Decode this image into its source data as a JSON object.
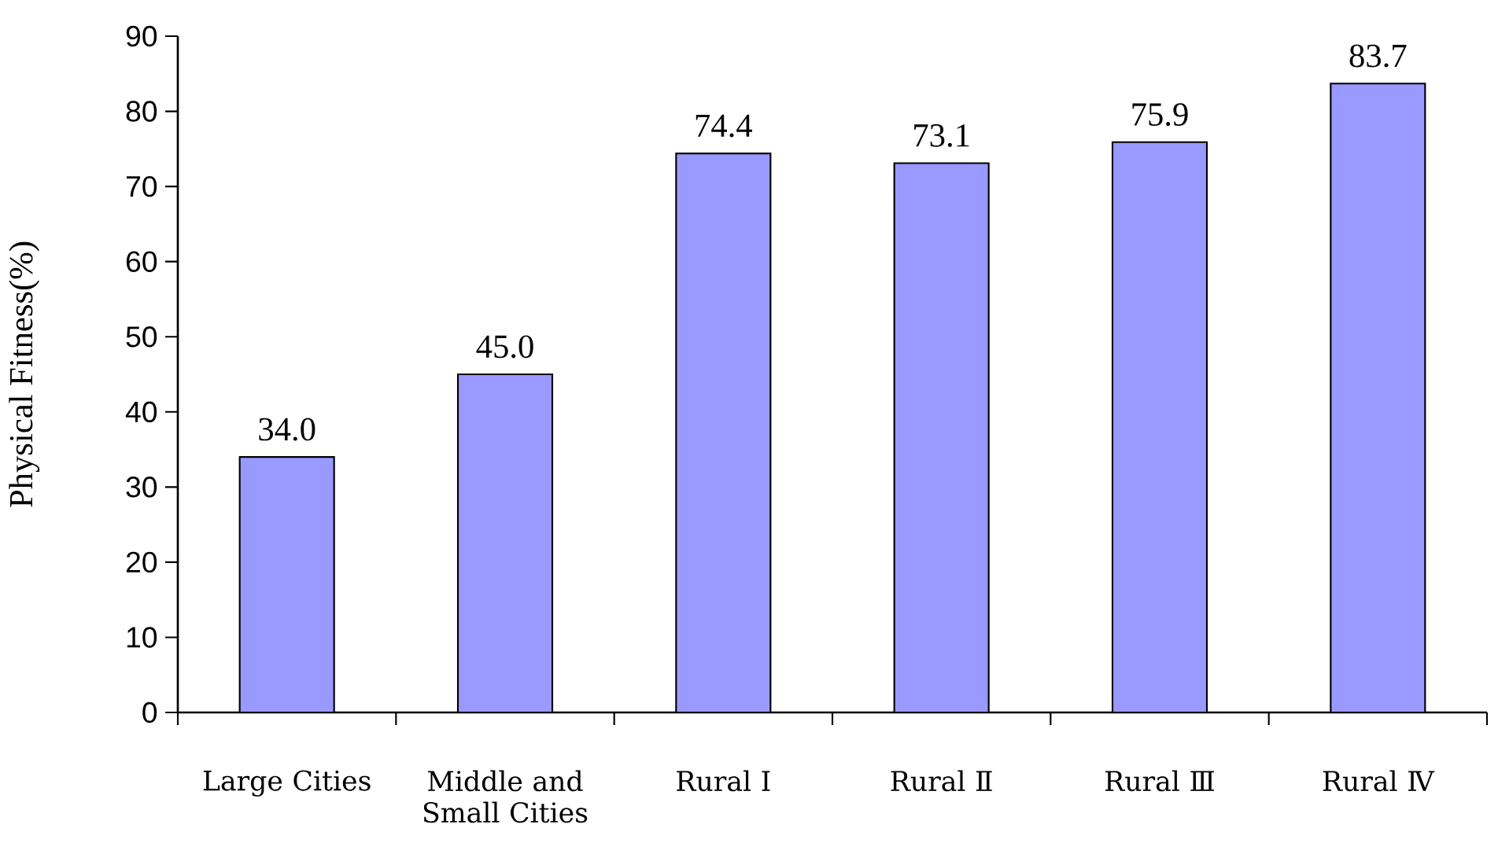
{
  "chart_data": {
    "type": "bar",
    "ylabel": "Physical  Fitness(%)",
    "categories": [
      "Large Cities",
      "Middle and Small Cities",
      "Rural Ⅰ",
      "Rural Ⅱ",
      "Rural Ⅲ",
      "Rural Ⅳ"
    ],
    "values": [
      34.0,
      45.0,
      74.4,
      73.1,
      75.9,
      83.7
    ],
    "value_labels": [
      "34.0",
      "45.0",
      "74.4",
      "73.1",
      "75.9",
      "83.7"
    ],
    "color": "#9999ff",
    "ylim": [
      0,
      90
    ],
    "yticks": [
      0,
      10,
      20,
      30,
      40,
      50,
      60,
      70,
      80,
      90
    ]
  }
}
